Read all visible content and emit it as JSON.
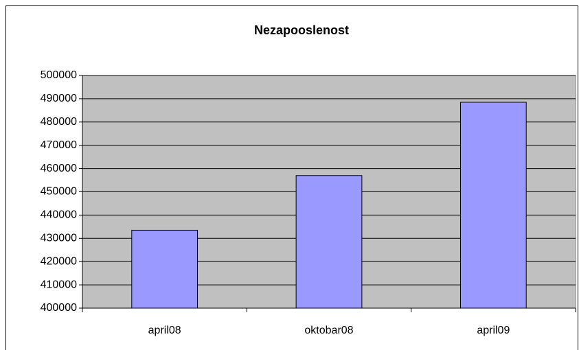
{
  "chart_data": {
    "type": "bar",
    "title": "Nezapooslenost",
    "categories": [
      "april08",
      "oktobar08",
      "april09"
    ],
    "values": [
      433500,
      457000,
      488500
    ],
    "color": "#9999ff",
    "ylim": [
      400000,
      500000
    ],
    "yticks": [
      400000,
      410000,
      420000,
      430000,
      440000,
      450000,
      460000,
      470000,
      480000,
      490000,
      500000
    ],
    "grid": true
  }
}
